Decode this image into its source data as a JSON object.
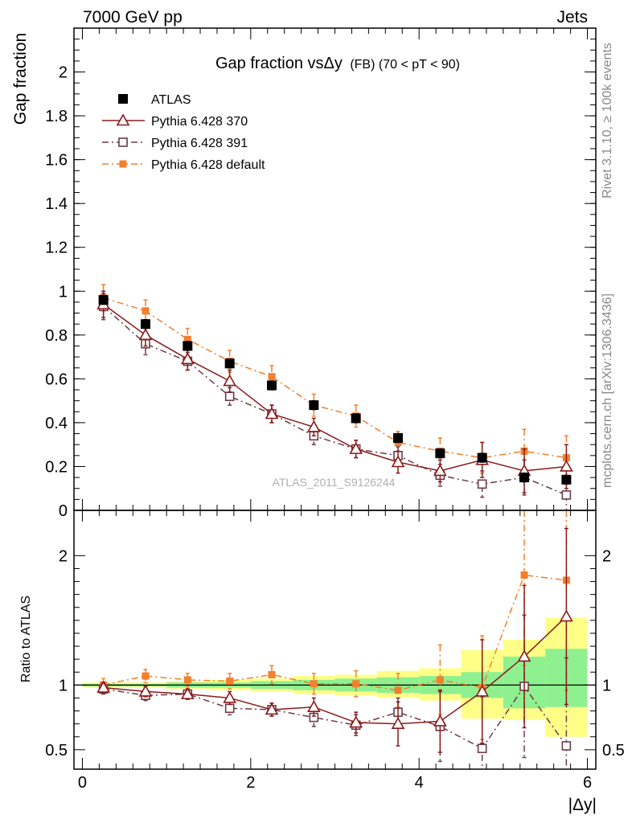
{
  "header": {
    "left": "7000 GeV pp",
    "right": "Jets"
  },
  "side_texts": {
    "rivet": "Rivet 3.1.10, ≥ 100k events",
    "mcplots": "mcplots.cern.ch [arXiv:1306.3436]"
  },
  "chart_data": [
    {
      "type": "scatter",
      "title": "Gap fraction vsΔy",
      "subtitle": "(FB) (70 < pT <  90)",
      "xlabel": "|Δy|",
      "ylabel": "Gap fraction",
      "watermark": "ATLAS_2011_S9126244",
      "xlim": [
        -0.1,
        6.1
      ],
      "ylim": [
        0,
        2.2
      ],
      "x_ticks": [
        0,
        2,
        4,
        6
      ],
      "y_ticks": [
        0,
        0.2,
        0.4,
        0.6,
        0.8,
        1,
        1.2,
        1.4,
        1.6,
        1.8,
        2
      ],
      "y_tick_labels": [
        "0",
        "0.2",
        "0.4",
        "0.6",
        "0.8",
        "1",
        "1.2",
        "1.4",
        "1.6",
        "1.8",
        "2"
      ],
      "legend_position": "top-left",
      "x": [
        0.25,
        0.75,
        1.25,
        1.75,
        2.25,
        2.75,
        3.25,
        3.75,
        4.25,
        4.75,
        5.25,
        5.75
      ],
      "series": [
        {
          "name": "ATLAS",
          "color": "#000000",
          "marker": "filled-square",
          "line": "none",
          "values": [
            0.96,
            0.85,
            0.75,
            0.67,
            0.57,
            0.48,
            0.42,
            0.33,
            0.26,
            0.24,
            0.15,
            0.14
          ],
          "errors": [
            0.02,
            0.02,
            0.02,
            0.02,
            0.02,
            0.02,
            0.02,
            0.02,
            0.02,
            0.02,
            0.02,
            0.02
          ]
        },
        {
          "name": "Pythia 6.428 370",
          "color": "#8b1a1a",
          "marker": "open-triangle",
          "line": "solid",
          "values": [
            0.94,
            0.8,
            0.69,
            0.59,
            0.44,
            0.38,
            0.28,
            0.22,
            0.18,
            0.23,
            0.18,
            0.2
          ],
          "errors": [
            0.06,
            0.05,
            0.05,
            0.05,
            0.04,
            0.04,
            0.04,
            0.05,
            0.05,
            0.08,
            0.1,
            0.1
          ]
        },
        {
          "name": "Pythia 6.428 391",
          "color": "#6e3a48",
          "marker": "open-square",
          "line": "dashdot",
          "values": [
            0.93,
            0.76,
            0.68,
            0.52,
            0.44,
            0.34,
            0.28,
            0.25,
            0.16,
            0.12,
            0.15,
            0.07
          ],
          "errors": [
            0.06,
            0.05,
            0.04,
            0.04,
            0.04,
            0.04,
            0.04,
            0.04,
            0.05,
            0.06,
            0.08,
            0.07
          ]
        },
        {
          "name": "Pythia 6.428 default",
          "color": "#f47f2c",
          "marker": "filled-small-square",
          "line": "dashdot",
          "values": [
            0.97,
            0.91,
            0.78,
            0.68,
            0.61,
            0.48,
            0.43,
            0.31,
            0.27,
            0.24,
            0.27,
            0.24
          ],
          "errors": [
            0.06,
            0.05,
            0.05,
            0.05,
            0.05,
            0.05,
            0.05,
            0.05,
            0.06,
            0.07,
            0.1,
            0.1
          ]
        }
      ]
    },
    {
      "type": "scatter",
      "ylabel": "Ratio to ATLAS",
      "xlim": [
        -0.1,
        6.1
      ],
      "ylim": [
        0.35,
        2.35
      ],
      "y_ticks": [
        0.5,
        1,
        2
      ],
      "y_tick_labels": [
        "0.5",
        "1",
        "2"
      ],
      "reference_line": 1,
      "x": [
        0.25,
        0.75,
        1.25,
        1.75,
        2.25,
        2.75,
        3.25,
        3.75,
        4.25,
        4.75,
        5.25,
        5.75
      ],
      "bands": [
        {
          "name": "total uncertainty",
          "color": "#ffff88",
          "low": [
            0.98,
            0.98,
            0.97,
            0.96,
            0.95,
            0.93,
            0.92,
            0.9,
            0.88,
            0.74,
            0.73,
            0.6
          ],
          "high": [
            1.02,
            1.02,
            1.03,
            1.04,
            1.05,
            1.07,
            1.08,
            1.11,
            1.13,
            1.27,
            1.35,
            1.52
          ]
        },
        {
          "name": "statistical uncertainty",
          "color": "#8ff08f",
          "low": [
            0.99,
            0.99,
            0.98,
            0.98,
            0.97,
            0.96,
            0.95,
            0.94,
            0.93,
            0.9,
            0.82,
            0.83
          ],
          "high": [
            1.01,
            1.01,
            1.02,
            1.02,
            1.03,
            1.04,
            1.05,
            1.06,
            1.07,
            1.1,
            1.22,
            1.28
          ]
        }
      ],
      "series": [
        {
          "name": "Pythia 6.428 370",
          "color": "#8b1a1a",
          "marker": "open-triangle",
          "line": "solid",
          "values": [
            0.98,
            0.95,
            0.93,
            0.9,
            0.81,
            0.83,
            0.71,
            0.7,
            0.72,
            0.95,
            1.22,
            1.53
          ],
          "errors": [
            0.04,
            0.04,
            0.04,
            0.05,
            0.05,
            0.07,
            0.08,
            0.17,
            0.24,
            0.4,
            0.55,
            0.68
          ]
        },
        {
          "name": "Pythia 6.428 391",
          "color": "#6e3a48",
          "marker": "open-square",
          "line": "dashdot",
          "values": [
            0.97,
            0.92,
            0.93,
            0.82,
            0.81,
            0.75,
            0.69,
            0.79,
            0.68,
            0.51,
            0.99,
            0.53
          ],
          "errors": [
            0.04,
            0.04,
            0.04,
            0.05,
            0.05,
            0.07,
            0.08,
            0.11,
            0.27,
            0.4,
            0.55,
            0.68
          ]
        },
        {
          "name": "Pythia 6.428 default",
          "color": "#f47f2c",
          "marker": "filled-small-square",
          "line": "dashdot",
          "values": [
            1.0,
            1.07,
            1.04,
            1.03,
            1.08,
            1.01,
            1.01,
            0.96,
            1.04,
            0.98,
            1.85,
            1.81
          ],
          "errors": [
            0.05,
            0.05,
            0.05,
            0.06,
            0.07,
            0.08,
            0.1,
            0.13,
            0.27,
            0.4,
            0.7,
            0.85
          ]
        }
      ]
    }
  ]
}
